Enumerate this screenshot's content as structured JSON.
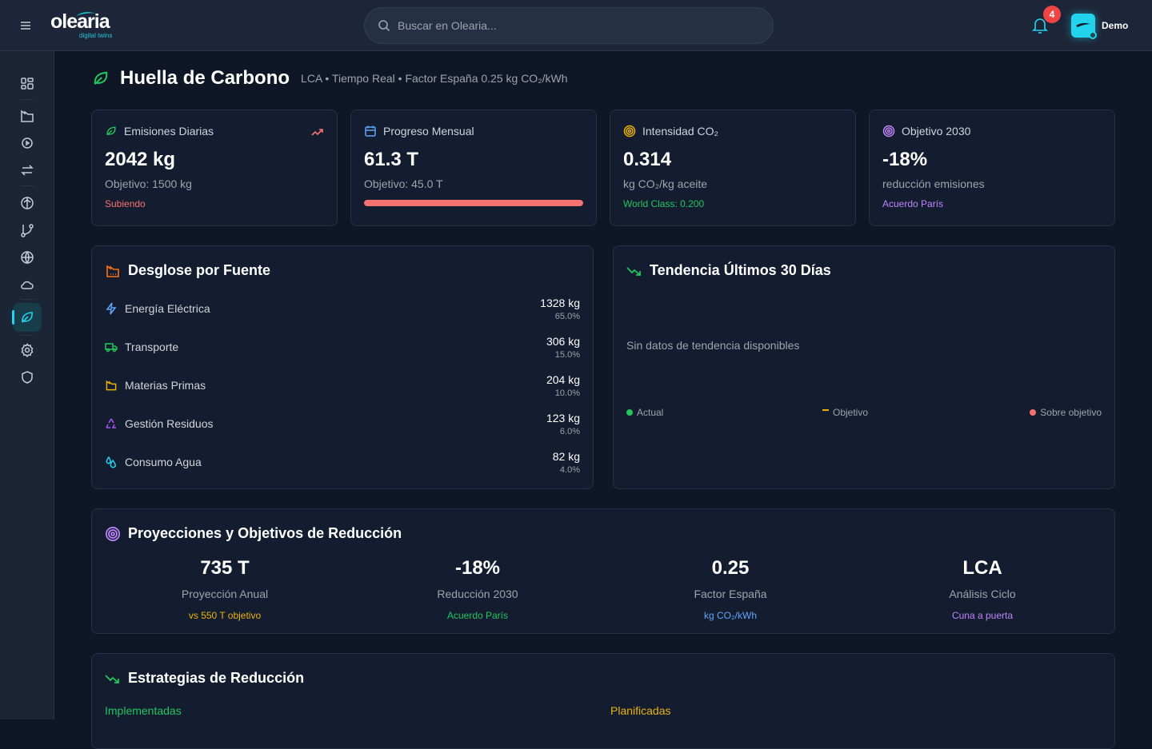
{
  "header": {
    "logo": "olearia",
    "logo_sub": "digital twins",
    "search_placeholder": "Buscar en Olearia...",
    "notifications": "4",
    "user": "Demo"
  },
  "page": {
    "title": "Huella de Carbono",
    "subtitle": "LCA • Tiempo Real • Factor España 0.25 kg CO₂/kWh"
  },
  "kpis": [
    {
      "label": "Emisiones Diarias",
      "value": "2042 kg",
      "sub": "Objetivo: 1500 kg",
      "note": "Subiendo",
      "note_color": "#f87171"
    },
    {
      "label": "Progreso Mensual",
      "value": "61.3 T",
      "sub": "Objetivo: 45.0 T",
      "progress": 100
    },
    {
      "label": "Intensidad CO₂",
      "value": "0.314",
      "sub": "kg CO₂/kg aceite",
      "note": "World Class: 0.200",
      "note_color": "#22c55e"
    },
    {
      "label": "Objetivo 2030",
      "value": "-18%",
      "sub": "reducción emisiones",
      "note": "Acuerdo París",
      "note_color": "#c084fc"
    }
  ],
  "breakdown": {
    "title": "Desglose por Fuente",
    "items": [
      {
        "name": "Energía Eléctrica",
        "kg": "1328 kg",
        "pct": "65.0%"
      },
      {
        "name": "Transporte",
        "kg": "306 kg",
        "pct": "15.0%"
      },
      {
        "name": "Materias Primas",
        "kg": "204 kg",
        "pct": "10.0%"
      },
      {
        "name": "Gestión Residuos",
        "kg": "123 kg",
        "pct": "6.0%"
      },
      {
        "name": "Consumo Agua",
        "kg": "82 kg",
        "pct": "4.0%"
      }
    ]
  },
  "trend": {
    "title": "Tendencia Últimos 30 Días",
    "empty": "Sin datos de tendencia disponibles",
    "legend": [
      "Actual",
      "Objetivo",
      "Sobre objetivo"
    ]
  },
  "projections": {
    "title": "Proyecciones y Objetivos de Reducción",
    "items": [
      {
        "value": "735 T",
        "label": "Proyección Anual",
        "note": "vs 550 T objetivo",
        "color": "#eab308"
      },
      {
        "value": "-18%",
        "label": "Reducción 2030",
        "note": "Acuerdo París",
        "color": "#22c55e"
      },
      {
        "value": "0.25",
        "label": "Factor España",
        "note": "kg CO₂/kWh",
        "color": "#60a5fa"
      },
      {
        "value": "LCA",
        "label": "Análisis Ciclo",
        "note": "Cuna a puerta",
        "color": "#c084fc"
      }
    ]
  },
  "strategies": {
    "title": "Estrategias de Reducción",
    "implemented": "Implementadas",
    "planned": "Planificadas"
  }
}
